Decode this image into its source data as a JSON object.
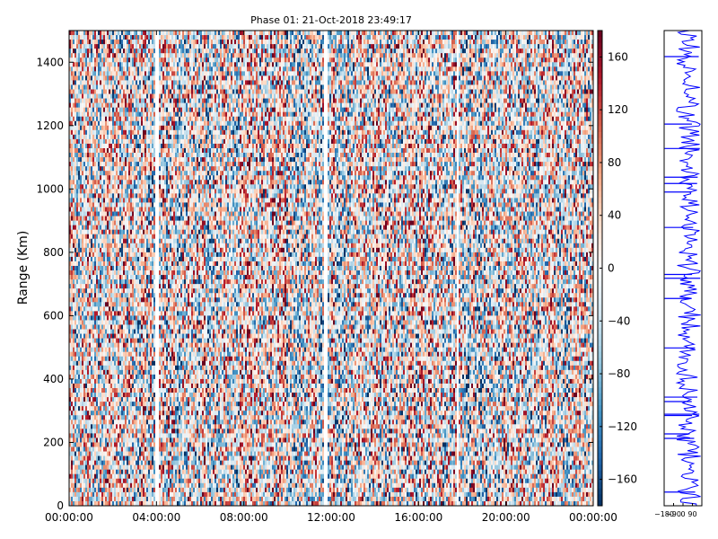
{
  "chart_data": {
    "type": "heatmap",
    "title": "Phase 01: 21-Oct-2018 23:49:17",
    "ylabel": "Range (Km)",
    "xlabel": "",
    "x_ticks": [
      "00:00:00",
      "04:00:00",
      "08:00:00",
      "12:00:00",
      "16:00:00",
      "20:00:00",
      "00:00:00"
    ],
    "x_range_hours": [
      0,
      24
    ],
    "y_ticks": [
      0,
      200,
      400,
      600,
      800,
      1000,
      1200,
      1400
    ],
    "y_range": [
      0,
      1500
    ],
    "colorbar": {
      "ticks": [
        -160,
        -120,
        -80,
        -40,
        0,
        40,
        80,
        120,
        160
      ],
      "range": [
        -180,
        180
      ],
      "colormap": "RdBu_r",
      "colors": [
        "#053061",
        "#2166ac",
        "#4393c3",
        "#92c5de",
        "#d1e5f0",
        "#f7f7f7",
        "#fddbc7",
        "#f4a582",
        "#d6604d",
        "#b2182b",
        "#67001f"
      ]
    },
    "side_profile": {
      "x_tick_labels": [
        "-180",
        "-90",
        "0",
        "90"
      ],
      "x_range": [
        -180,
        180
      ],
      "line_color": "#0000ff"
    },
    "grid": false
  }
}
